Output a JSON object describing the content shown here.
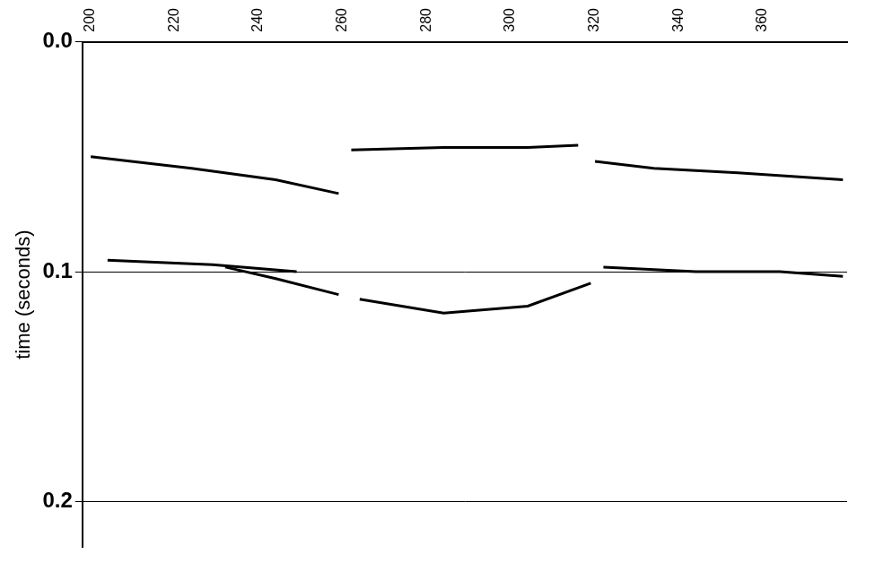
{
  "chart_data": {
    "type": "line",
    "y_label": "time (seconds)",
    "xlim": [
      194,
      376
    ],
    "xticks": [
      200,
      220,
      240,
      260,
      280,
      300,
      320,
      340,
      360
    ],
    "ylim": [
      0,
      0.22
    ],
    "yticks": [
      {
        "value": 0,
        "label": "0.0"
      },
      0.1,
      0.2
    ],
    "grid": true,
    "color": "#000000",
    "series": [
      {
        "x": [
          196,
          220,
          240,
          255
        ],
        "values": [
          0.05,
          0.055,
          0.06,
          0.066
        ]
      },
      {
        "x": [
          258,
          280,
          300,
          312
        ],
        "values": [
          0.047,
          0.046,
          0.046,
          0.045
        ]
      },
      {
        "x": [
          316,
          330,
          350,
          375
        ],
        "values": [
          0.052,
          0.055,
          0.057,
          0.06
        ]
      },
      {
        "x": [
          200,
          225,
          245
        ],
        "values": [
          0.095,
          0.097,
          0.1
        ]
      },
      {
        "x": [
          228,
          240,
          255
        ],
        "values": [
          0.098,
          0.103,
          0.11
        ]
      },
      {
        "x": [
          260,
          280,
          300,
          315
        ],
        "values": [
          0.112,
          0.118,
          0.115,
          0.105
        ]
      },
      {
        "x": [
          318,
          340,
          360,
          375
        ],
        "values": [
          0.098,
          0.1,
          0.1,
          0.102
        ]
      }
    ]
  }
}
